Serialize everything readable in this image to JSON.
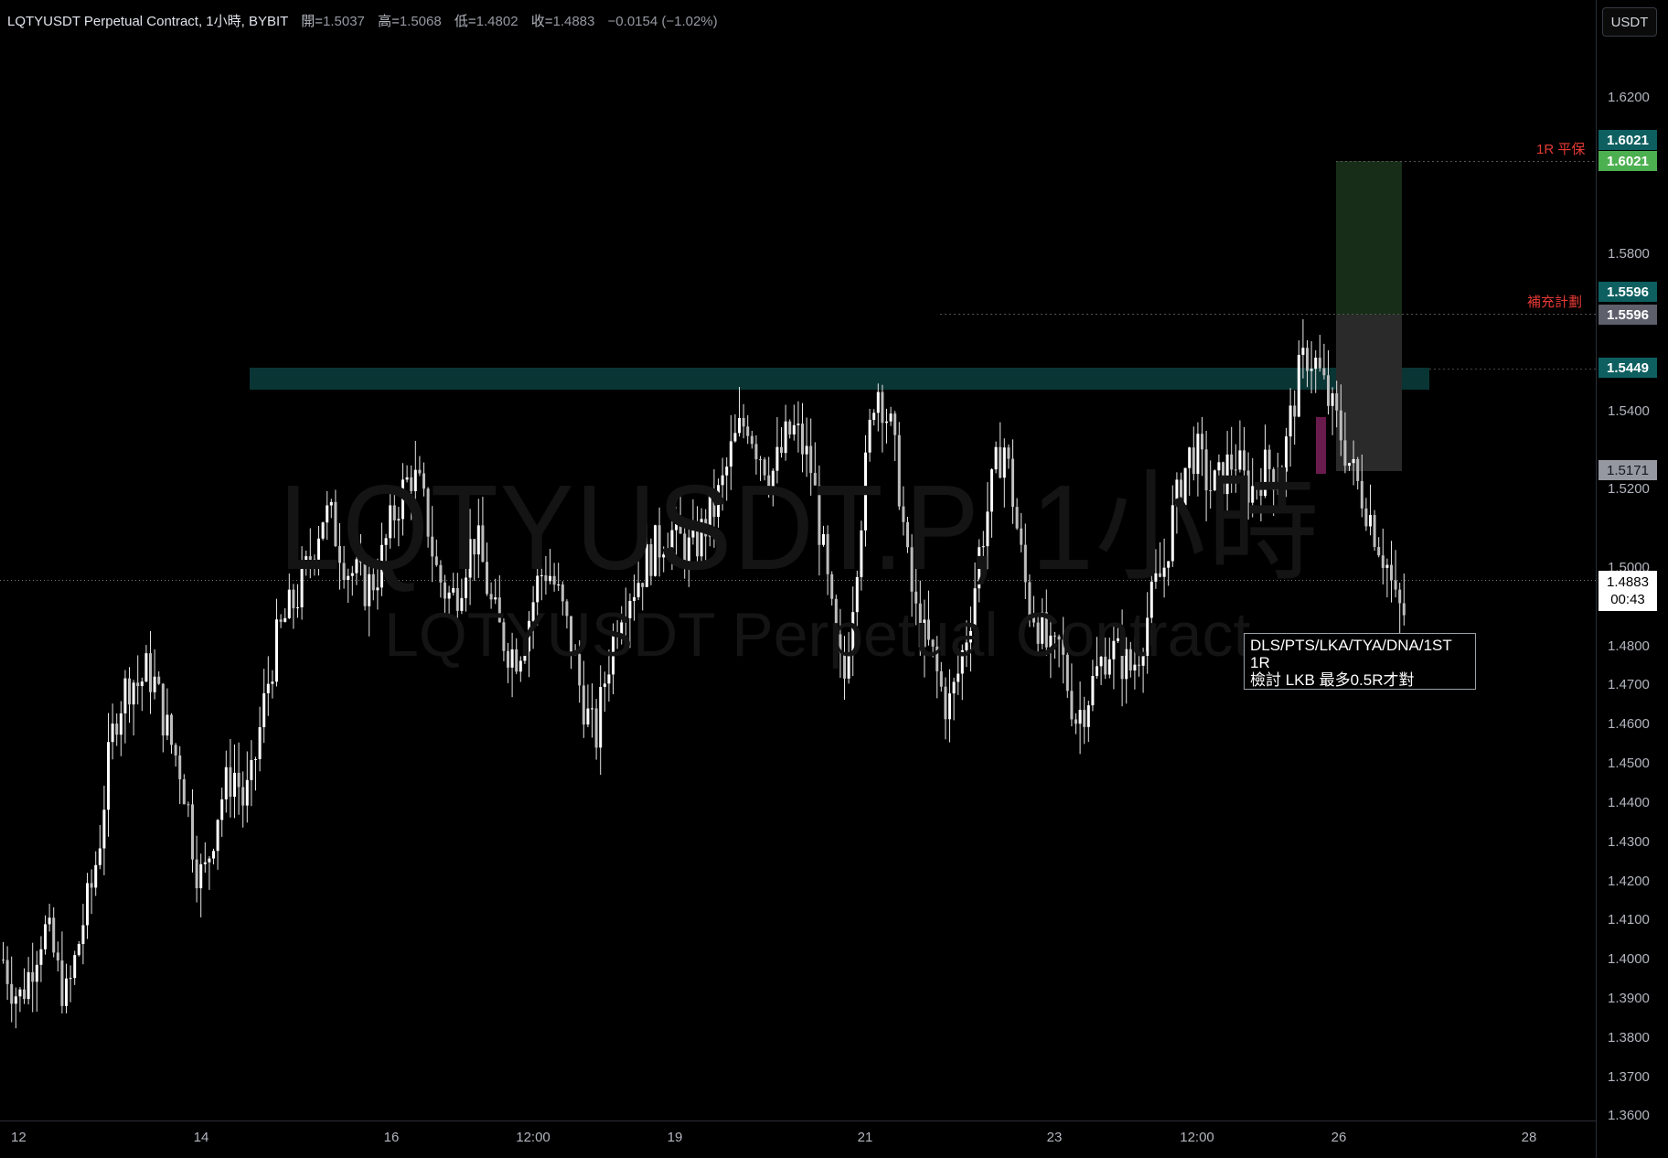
{
  "header": {
    "symbol": "LQTYUSDT Perpetual Contract, 1小時, BYBIT",
    "open_label": "開=",
    "open_value": "1.5037",
    "high_label": "高=",
    "high_value": "1.5068",
    "low_label": "低=",
    "low_value": "1.4802",
    "close_label": "收=",
    "close_value": "1.4883",
    "change": "−0.0154 (−1.02%)"
  },
  "currency_button": "USDT",
  "watermark": {
    "line1": "LQTYUSDT.P, 1小時",
    "line2": "LQTYUSDT Perpetual Contract"
  },
  "note": {
    "line1": "DLS/PTS/LKA/TYA/DNA/1ST",
    "line2": "1R",
    "line3": "檢討 LKB 最多0.5R才對"
  },
  "price_tags": {
    "target_top": "1.6021",
    "target_green": "1.6021",
    "entry_teal": "1.5596",
    "entry_gray": "1.5596",
    "zone_level": "1.5449",
    "stop_level": "1.5171",
    "last_price": "1.4883",
    "countdown": "00:43"
  },
  "right_labels": {
    "target_label": "1R 平保",
    "plan_label": "補充計劃"
  },
  "colors": {
    "background": "#000000",
    "candle": "#ffffff",
    "zone": "#0a3535",
    "reward": "#1a331a",
    "risk": "#2e2e2e",
    "label_red": "#e53935"
  },
  "chart_data": {
    "type": "candlestick",
    "title": "LQTYUSDT Perpetual Contract, 1小時, BYBIT",
    "ylim": [
      1.35,
      1.63
    ],
    "y_ticks": [
      "1.6200",
      "1.5800",
      "1.5400",
      "1.5200",
      "1.5000",
      "1.4800",
      "1.4700",
      "1.4600",
      "1.4500",
      "1.4400",
      "1.4300",
      "1.4200",
      "1.4100",
      "1.4000",
      "1.3900",
      "1.3800",
      "1.3700",
      "1.3600"
    ],
    "x_ticks": [
      "12",
      "14",
      "16",
      "12:00",
      "19",
      "21",
      "23",
      "12:00",
      "26",
      "28"
    ],
    "levels": {
      "target": 1.6021,
      "entry": 1.5596,
      "zone": 1.5449,
      "stop": 1.5171,
      "last": 1.4883
    },
    "close_path": [
      1.4,
      1.394,
      1.39,
      1.395,
      1.402,
      1.408,
      1.404,
      1.395,
      1.39,
      1.4,
      1.41,
      1.418,
      1.43,
      1.448,
      1.462,
      1.468,
      1.472,
      1.47,
      1.474,
      1.47,
      1.462,
      1.455,
      1.45,
      1.44,
      1.425,
      1.42,
      1.43,
      1.44,
      1.445,
      1.448,
      1.44,
      1.445,
      1.458,
      1.47,
      1.48,
      1.486,
      1.49,
      1.494,
      1.5,
      1.508,
      1.514,
      1.512,
      1.506,
      1.5,
      1.498,
      1.495,
      1.496,
      1.5,
      1.508,
      1.515,
      1.52,
      1.524,
      1.52,
      1.512,
      1.5,
      1.495,
      1.492,
      1.496,
      1.504,
      1.508,
      1.5,
      1.49,
      1.484,
      1.48,
      1.478,
      1.482,
      1.49,
      1.498,
      1.5,
      1.495,
      1.488,
      1.48,
      1.47,
      1.462,
      1.456,
      1.47,
      1.48,
      1.49,
      1.494,
      1.496,
      1.5,
      1.504,
      1.506,
      1.51,
      1.508,
      1.506,
      1.504,
      1.508,
      1.512,
      1.516,
      1.522,
      1.53,
      1.535,
      1.538,
      1.532,
      1.528,
      1.524,
      1.528,
      1.534,
      1.535,
      1.53,
      1.525,
      1.51,
      1.495,
      1.48,
      1.47,
      1.49,
      1.51,
      1.53,
      1.548,
      1.542,
      1.534,
      1.52,
      1.5,
      1.488,
      1.482,
      1.478,
      1.47,
      1.464,
      1.47,
      1.48,
      1.49,
      1.505,
      1.515,
      1.525,
      1.532,
      1.52,
      1.505,
      1.492,
      1.488,
      1.482,
      1.476,
      1.48,
      1.47,
      1.462,
      1.465,
      1.47,
      1.475,
      1.48,
      1.478,
      1.476,
      1.474,
      1.48,
      1.488,
      1.495,
      1.5,
      1.512,
      1.52,
      1.528,
      1.53,
      1.524,
      1.52,
      1.522,
      1.526,
      1.528,
      1.522,
      1.52,
      1.524,
      1.526,
      1.524,
      1.528,
      1.54,
      1.55,
      1.555,
      1.552,
      1.546,
      1.54,
      1.535,
      1.528,
      1.522,
      1.518,
      1.512,
      1.506,
      1.5,
      1.49,
      1.4883
    ]
  }
}
